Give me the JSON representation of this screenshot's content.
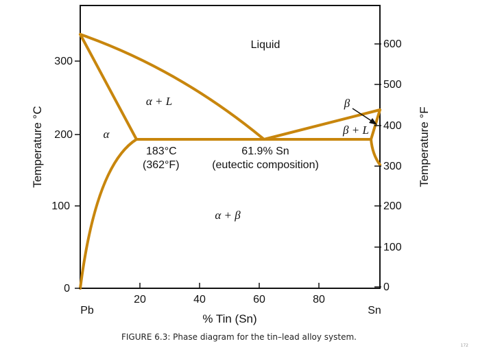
{
  "diagram": {
    "left_axis_title": "Temperature °C",
    "right_axis_title": "Temperature °F",
    "x_axis_title": "% Tin (Sn)",
    "left_ticks": [
      "0",
      "100",
      "200",
      "300"
    ],
    "right_ticks": [
      "0",
      "100",
      "200",
      "300",
      "400",
      "500",
      "600"
    ],
    "x_ticks": [
      "20",
      "40",
      "60",
      "80"
    ],
    "x_end_left": "Pb",
    "x_end_right": "Sn",
    "phases": {
      "liquid": "Liquid",
      "alpha_liquid": "α + L",
      "alpha": "α",
      "alpha_beta": "α + β",
      "beta": "β",
      "beta_liquid": "β + L"
    },
    "annotations": {
      "eutectic_temp_c": "183°C",
      "eutectic_temp_f": "(362°F)",
      "eutectic_comp": "61.9% Sn",
      "eutectic_label": "(eutectic composition)"
    }
  },
  "caption": "FIGURE 6.3: Phase diagram for the tin–lead alloy system.",
  "page_number": "172",
  "colors": {
    "phase_line": "#c8860d",
    "frame": "#111111"
  }
}
